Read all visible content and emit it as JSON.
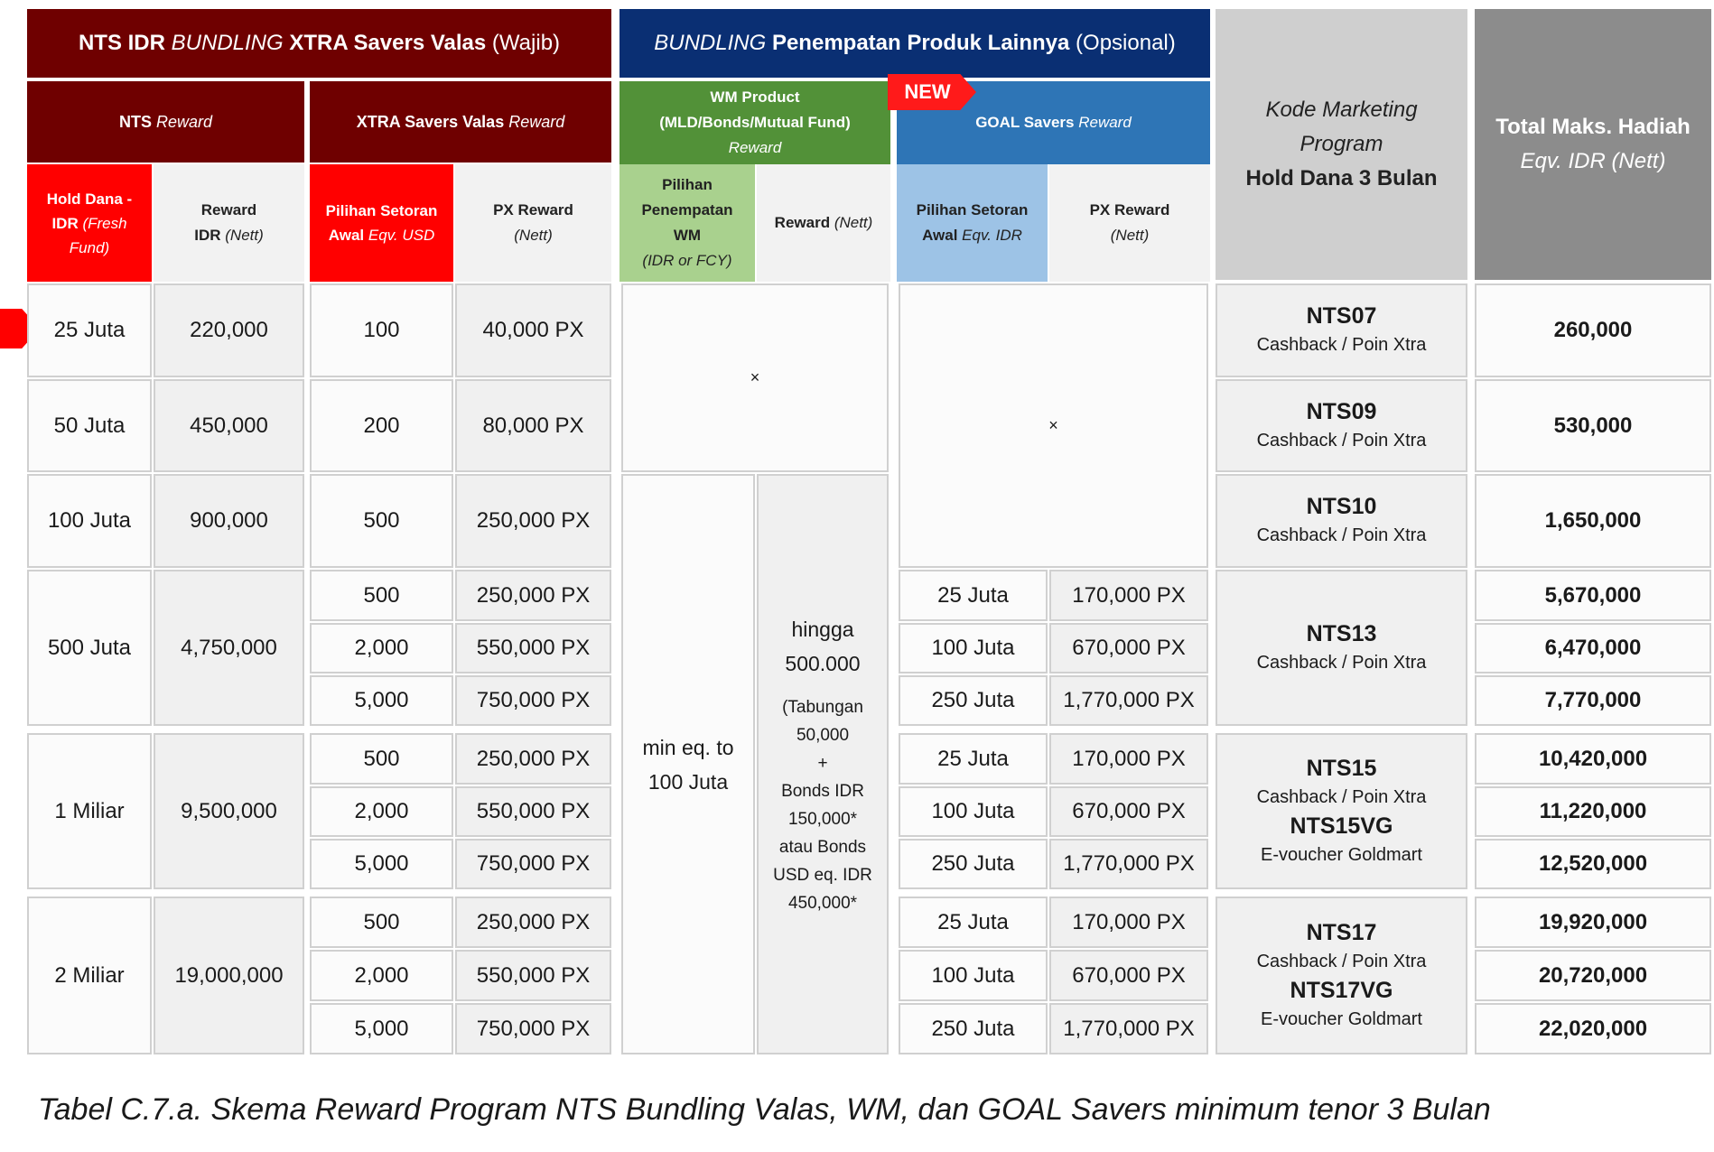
{
  "header": {
    "nts_bundling": {
      "p1": "NTS IDR ",
      "p2": "BUNDLING",
      "p3": " XTRA Savers Valas ",
      "p4": "(Wajib)"
    },
    "bundling_other": {
      "p1": "BUNDLING",
      "p2": " Penempatan Produk Lainnya ",
      "p3": "(Opsional)"
    },
    "kode": {
      "l1": "Kode Marketing",
      "l2": "Program",
      "l3": "Hold Dana 3 Bulan"
    },
    "total": {
      "l1": "Total Maks. Hadiah",
      "l2": "Eqv. IDR (Nett)"
    },
    "nts_reward": {
      "p1": "NTS ",
      "p2": "Reward"
    },
    "xtra_reward": {
      "p1": "XTRA Savers Valas ",
      "p2": "Reward"
    },
    "wm_product": {
      "l1": "WM Product",
      "l2": "(MLD/Bonds/Mutual Fund)",
      "l3": "Reward"
    },
    "goal_reward": {
      "p1": "GOAL Savers ",
      "p2": "Reward"
    },
    "new_badge": "NEW",
    "hold_dana": {
      "l1": "Hold Dana -",
      "l2a": "IDR ",
      "l2b": "(Fresh",
      "l3": "Fund)"
    },
    "reward_idr": {
      "l1": "Reward",
      "l2a": "IDR ",
      "l2b": "(Nett)"
    },
    "pilihan_usd": {
      "l1": "Pilihan Setoran",
      "l2a": "Awal ",
      "l2b": "Eqv. USD"
    },
    "px_reward": {
      "l1": "PX Reward",
      "l2": "(Nett)"
    },
    "pilihan_wm": {
      "l1": "Pilihan",
      "l2": "Penempatan",
      "l3": "WM",
      "l4": "(IDR or FCY)"
    },
    "reward_nett": {
      "p1": "Reward ",
      "p2": "(Nett)"
    },
    "pilihan_idr": {
      "l1": "Pilihan Setoran",
      "l2a": "Awal ",
      "l2b": "Eqv. IDR"
    },
    "px_reward2": {
      "l1": "PX Reward",
      "l2": "(Nett)"
    }
  },
  "rows": [
    {
      "hold": "25 Juta",
      "reward": "220,000",
      "code": "NTS07",
      "code_sub": "Cashback / Poin Xtra",
      "xtra": [
        {
          "setoran": "100",
          "px": "40,000 PX"
        }
      ],
      "totals": [
        "260,000"
      ]
    },
    {
      "hold": "50 Juta",
      "reward": "450,000",
      "code": "NTS09",
      "code_sub": "Cashback / Poin Xtra",
      "xtra": [
        {
          "setoran": "200",
          "px": "80,000 PX"
        }
      ],
      "totals": [
        "530,000"
      ]
    },
    {
      "hold": "100 Juta",
      "reward": "900,000",
      "code": "NTS10",
      "code_sub": "Cashback / Poin Xtra",
      "xtra": [
        {
          "setoran": "500",
          "px": "250,000 PX"
        }
      ],
      "totals": [
        "1,650,000"
      ]
    },
    {
      "hold": "500 Juta",
      "reward": "4,750,000",
      "code": "NTS13",
      "code_sub": "Cashback / Poin Xtra",
      "xtra": [
        {
          "setoran": "500",
          "px": "250,000 PX"
        },
        {
          "setoran": "2,000",
          "px": "550,000 PX"
        },
        {
          "setoran": "5,000",
          "px": "750,000 PX"
        }
      ],
      "goal": [
        {
          "setoran": "25 Juta",
          "px": "170,000 PX"
        },
        {
          "setoran": "100 Juta",
          "px": "670,000 PX"
        },
        {
          "setoran": "250 Juta",
          "px": "1,770,000 PX"
        }
      ],
      "totals": [
        "5,670,000",
        "6,470,000",
        "7,770,000"
      ]
    },
    {
      "hold": "1 Miliar",
      "reward": "9,500,000",
      "code": "NTS15",
      "code_sub": "Cashback / Poin Xtra",
      "code2": "NTS15VG",
      "code2_sub": "E-voucher Goldmart",
      "xtra": [
        {
          "setoran": "500",
          "px": "250,000 PX"
        },
        {
          "setoran": "2,000",
          "px": "550,000 PX"
        },
        {
          "setoran": "5,000",
          "px": "750,000 PX"
        }
      ],
      "goal": [
        {
          "setoran": "25 Juta",
          "px": "170,000 PX"
        },
        {
          "setoran": "100 Juta",
          "px": "670,000 PX"
        },
        {
          "setoran": "250 Juta",
          "px": "1,770,000 PX"
        }
      ],
      "totals": [
        "10,420,000",
        "11,220,000",
        "12,520,000"
      ]
    },
    {
      "hold": "2 Miliar",
      "reward": "19,000,000",
      "code": "NTS17",
      "code_sub": "Cashback / Poin Xtra",
      "code2": "NTS17VG",
      "code2_sub": "E-voucher Goldmart",
      "xtra": [
        {
          "setoran": "500",
          "px": "250,000 PX"
        },
        {
          "setoran": "2,000",
          "px": "550,000 PX"
        },
        {
          "setoran": "5,000",
          "px": "750,000 PX"
        }
      ],
      "goal": [
        {
          "setoran": "25 Juta",
          "px": "170,000 PX"
        },
        {
          "setoran": "100 Juta",
          "px": "670,000 PX"
        },
        {
          "setoran": "250 Juta",
          "px": "1,770,000 PX"
        }
      ],
      "totals": [
        "19,920,000",
        "20,720,000",
        "22,020,000"
      ]
    }
  ],
  "wm": {
    "empty_mark": "×",
    "min": {
      "l1": "min eq. to",
      "l2": "100 Juta"
    },
    "reward": {
      "l1": "hingga",
      "l2": "500.000",
      "l3": "(Tabungan",
      "l4": "50,000",
      "l5": "+",
      "l6": "Bonds IDR",
      "l7": "150,000*",
      "l8": "atau Bonds",
      "l9": "USD eq. IDR",
      "l10": "450,000*"
    }
  },
  "goal_empty_mark": "×",
  "caption": "Tabel C.7.a.  Skema Reward Program NTS Bundling Valas, WM, dan GOAL Savers minimum tenor 3 Bulan"
}
